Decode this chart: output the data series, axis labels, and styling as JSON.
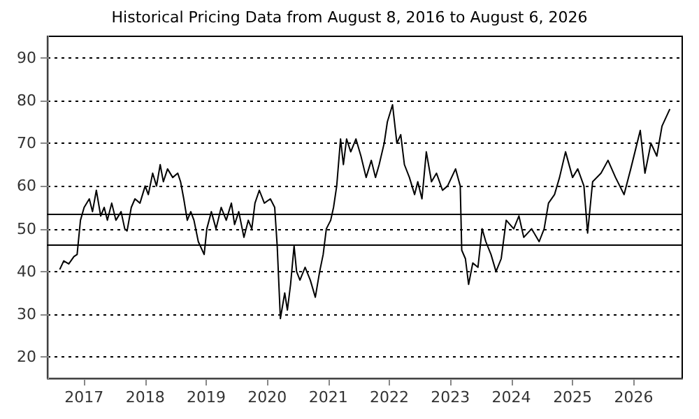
{
  "chart_data": {
    "type": "line",
    "title": "Historical Pricing Data from August 8, 2016 to August 6, 2026",
    "x": [
      "2016-08-08",
      "2016-09-01",
      "2016-10-01",
      "2016-11-01",
      "2016-11-20",
      "2016-12-10",
      "2017-01-01",
      "2017-02-01",
      "2017-02-20",
      "2017-03-15",
      "2017-04-10",
      "2017-05-01",
      "2017-05-20",
      "2017-06-15",
      "2017-07-10",
      "2017-08-10",
      "2017-09-01",
      "2017-09-15",
      "2017-10-10",
      "2017-11-01",
      "2017-12-01",
      "2018-01-01",
      "2018-01-20",
      "2018-02-15",
      "2018-03-10",
      "2018-04-01",
      "2018-04-20",
      "2018-05-15",
      "2018-06-15",
      "2018-07-15",
      "2018-08-01",
      "2018-08-20",
      "2018-09-10",
      "2018-10-01",
      "2018-10-20",
      "2018-11-15",
      "2018-12-20",
      "2019-01-05",
      "2019-02-01",
      "2019-03-01",
      "2019-04-01",
      "2019-05-01",
      "2019-06-01",
      "2019-06-20",
      "2019-07-15",
      "2019-08-15",
      "2019-09-10",
      "2019-10-01",
      "2019-10-20",
      "2019-11-15",
      "2019-12-15",
      "2020-01-20",
      "2020-02-15",
      "2020-03-01",
      "2020-03-20",
      "2020-04-15",
      "2020-05-01",
      "2020-05-20",
      "2020-06-10",
      "2020-06-25",
      "2020-07-15",
      "2020-08-15",
      "2020-09-15",
      "2020-10-15",
      "2020-11-10",
      "2020-12-01",
      "2020-12-20",
      "2021-01-15",
      "2021-02-01",
      "2021-02-20",
      "2021-03-15",
      "2021-04-01",
      "2021-04-20",
      "2021-05-15",
      "2021-06-15",
      "2021-07-15",
      "2021-08-15",
      "2021-09-15",
      "2021-10-10",
      "2021-11-01",
      "2021-12-01",
      "2021-12-20",
      "2022-01-20",
      "2022-02-15",
      "2022-03-10",
      "2022-04-01",
      "2022-05-01",
      "2022-06-01",
      "2022-06-20",
      "2022-07-15",
      "2022-08-10",
      "2022-09-10",
      "2022-10-10",
      "2022-11-15",
      "2022-12-15",
      "2023-02-01",
      "2023-03-01",
      "2023-03-10",
      "2023-04-01",
      "2023-04-20",
      "2023-05-15",
      "2023-06-15",
      "2023-07-10",
      "2023-08-01",
      "2023-09-01",
      "2023-10-01",
      "2023-11-01",
      "2023-12-01",
      "2024-01-15",
      "2024-02-15",
      "2024-03-15",
      "2024-05-01",
      "2024-06-15",
      "2024-07-15",
      "2024-08-10",
      "2024-09-15",
      "2024-10-15",
      "2024-11-20",
      "2025-01-01",
      "2025-02-01",
      "2025-03-10",
      "2025-04-01",
      "2025-05-01",
      "2025-06-20",
      "2025-08-01",
      "2025-09-15",
      "2025-11-05",
      "2025-12-15",
      "2026-02-10",
      "2026-03-10",
      "2026-04-15",
      "2026-05-20",
      "2026-06-20",
      "2026-08-06"
    ],
    "series": [
      {
        "color": "#000000",
        "values": [
          40.5,
          42.5,
          41.8,
          43.5,
          44,
          52,
          55,
          57,
          54,
          59,
          53,
          55,
          52,
          56,
          52,
          54,
          50,
          49.5,
          55,
          57,
          56,
          60,
          58,
          63,
          60,
          65,
          61,
          64,
          62,
          63,
          61,
          57,
          52,
          54,
          52,
          47,
          44,
          50,
          54,
          50,
          55,
          52,
          56,
          51,
          54,
          48,
          52,
          50,
          56,
          59,
          56,
          57,
          55,
          46,
          29,
          35,
          31,
          37,
          46,
          40,
          38,
          41,
          38,
          34,
          40,
          44,
          50,
          52,
          55,
          60,
          71,
          65,
          71,
          68,
          71,
          67,
          62,
          66,
          62,
          65,
          70,
          75,
          79,
          70,
          72,
          65,
          62,
          58,
          61,
          57,
          68,
          61,
          63,
          59,
          60,
          64,
          60,
          45,
          43,
          37,
          42,
          41,
          50,
          47,
          44,
          40,
          43,
          52,
          50,
          53,
          48,
          50,
          47,
          50,
          56,
          58,
          62,
          68,
          62,
          64,
          60,
          49,
          61,
          63,
          66,
          62,
          58,
          64,
          73,
          63,
          70,
          67,
          74,
          78
        ]
      }
    ],
    "xlim": [
      "2016-05-27",
      "2026-10-19"
    ],
    "xticks": [
      {
        "value": "2017-01-01",
        "label": "2017"
      },
      {
        "value": "2018-01-01",
        "label": "2018"
      },
      {
        "value": "2019-01-01",
        "label": "2019"
      },
      {
        "value": "2020-01-01",
        "label": "2020"
      },
      {
        "value": "2021-01-01",
        "label": "2021"
      },
      {
        "value": "2022-01-01",
        "label": "2022"
      },
      {
        "value": "2023-01-01",
        "label": "2023"
      },
      {
        "value": "2024-01-01",
        "label": "2024"
      },
      {
        "value": "2025-01-01",
        "label": "2025"
      },
      {
        "value": "2026-01-01",
        "label": "2026"
      }
    ],
    "ylim": [
      15,
      95
    ],
    "yticks": [
      20,
      30,
      40,
      50,
      60,
      70,
      80,
      90
    ],
    "ref_lines": [
      {
        "axis": "y",
        "value": 53.6,
        "color": "#000000",
        "line_style": "solid"
      },
      {
        "axis": "y",
        "value": 46.2,
        "color": "#000000",
        "line_style": "solid"
      }
    ],
    "grid": "y",
    "line_style": "solid",
    "marker": "none"
  }
}
